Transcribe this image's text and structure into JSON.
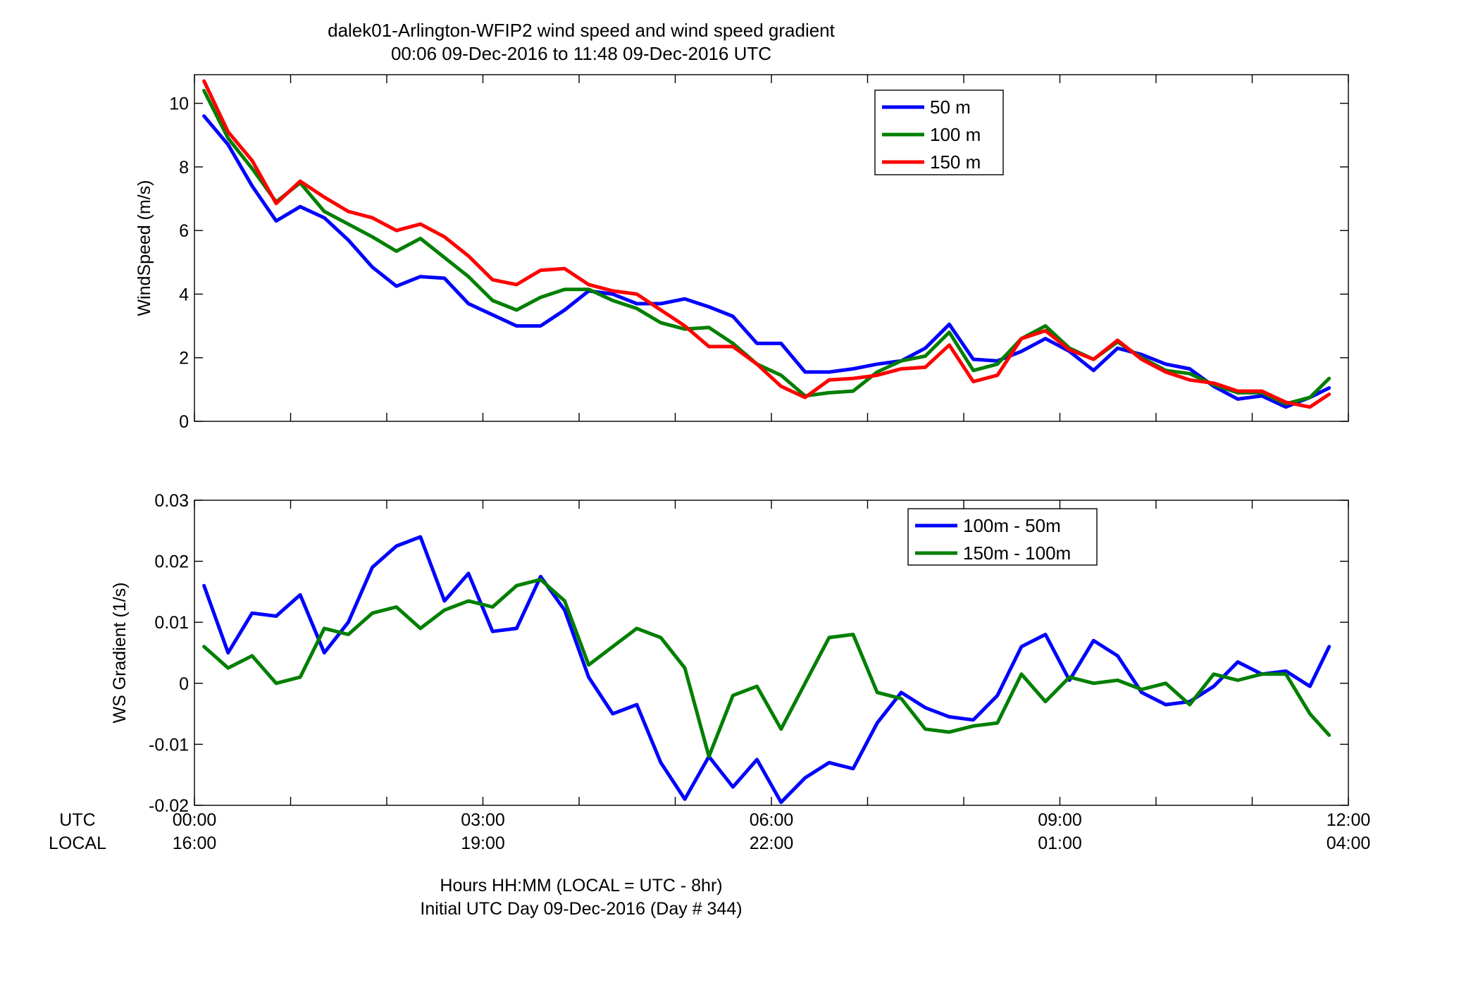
{
  "colors": {
    "blue": "#0000ff",
    "green": "#007f00",
    "red": "#ff0000"
  },
  "chart_data": [
    {
      "type": "line",
      "title": "dalek01-Arlington-WFIP2  wind speed and wind speed gradient",
      "subtitle": "00:06 09-Dec-2016 to 11:48 09-Dec-2016  UTC",
      "ylabel": "WindSpeed (m/s)",
      "xlim": [
        0,
        12
      ],
      "ylim": [
        0,
        10.9
      ],
      "yticks": [
        0,
        2,
        4,
        6,
        8,
        10
      ],
      "grid": false,
      "legend": "top-center",
      "x": [
        0.1,
        0.35,
        0.6,
        0.85,
        1.1,
        1.35,
        1.6,
        1.85,
        2.1,
        2.35,
        2.6,
        2.85,
        3.1,
        3.35,
        3.6,
        3.85,
        4.1,
        4.35,
        4.6,
        4.85,
        5.1,
        5.35,
        5.6,
        5.85,
        6.1,
        6.35,
        6.6,
        6.85,
        7.1,
        7.35,
        7.6,
        7.85,
        8.1,
        8.35,
        8.6,
        8.85,
        9.1,
        9.35,
        9.6,
        9.85,
        10.1,
        10.35,
        10.6,
        10.85,
        11.1,
        11.35,
        11.6,
        11.8
      ],
      "series": [
        {
          "name": "50 m",
          "color": "#0000ff",
          "values": [
            9.6,
            8.7,
            7.4,
            6.3,
            6.75,
            6.4,
            5.7,
            4.85,
            4.25,
            4.55,
            4.5,
            3.7,
            3.35,
            3.0,
            3.0,
            3.5,
            4.1,
            4.0,
            3.7,
            3.7,
            3.85,
            3.6,
            3.3,
            2.45,
            2.45,
            1.55,
            1.55,
            1.65,
            1.8,
            1.9,
            2.3,
            3.05,
            1.95,
            1.9,
            2.2,
            2.6,
            2.2,
            1.6,
            2.3,
            2.1,
            1.8,
            1.65,
            1.1,
            0.7,
            0.8,
            0.45,
            0.75,
            1.05
          ]
        },
        {
          "name": "100 m",
          "color": "#007f00",
          "values": [
            10.4,
            8.9,
            7.95,
            6.9,
            7.5,
            6.6,
            6.2,
            5.8,
            5.35,
            5.75,
            5.15,
            4.55,
            3.8,
            3.5,
            3.9,
            4.15,
            4.15,
            3.8,
            3.55,
            3.1,
            2.9,
            2.95,
            2.45,
            1.8,
            1.45,
            0.8,
            0.9,
            0.95,
            1.55,
            1.9,
            2.05,
            2.8,
            1.6,
            1.8,
            2.6,
            3.0,
            2.3,
            1.95,
            2.5,
            2.0,
            1.6,
            1.5,
            1.15,
            0.9,
            0.9,
            0.55,
            0.75,
            1.35
          ]
        },
        {
          "name": "150 m",
          "color": "#ff0000",
          "values": [
            10.7,
            9.1,
            8.2,
            6.85,
            7.55,
            7.05,
            6.6,
            6.4,
            6.0,
            6.2,
            5.8,
            5.2,
            4.45,
            4.3,
            4.75,
            4.8,
            4.3,
            4.1,
            4.0,
            3.5,
            3.0,
            2.35,
            2.35,
            1.8,
            1.1,
            0.75,
            1.3,
            1.35,
            1.45,
            1.65,
            1.7,
            2.4,
            1.25,
            1.45,
            2.6,
            2.85,
            2.25,
            1.95,
            2.55,
            1.95,
            1.55,
            1.3,
            1.2,
            0.95,
            0.95,
            0.6,
            0.45,
            0.85
          ]
        }
      ]
    },
    {
      "type": "line",
      "ylabel": "WS Gradient (1/s)",
      "xlabel": "Hours HH:MM  (LOCAL = UTC - 8hr)",
      "xlabel2": "Initial UTC Day 09-Dec-2016 (Day # 344)",
      "xlim": [
        0,
        12
      ],
      "ylim": [
        -0.02,
        0.03
      ],
      "yticks": [
        -0.02,
        -0.01,
        0,
        0.01,
        0.02,
        0.03
      ],
      "ytick_labels": [
        "-0.02",
        "-0.01",
        "0",
        "0.01",
        "0.02",
        "0.03"
      ],
      "xticks": [
        0,
        3,
        6,
        9,
        12
      ],
      "xtick_labels_utc": [
        "00:00",
        "03:00",
        "06:00",
        "09:00",
        "12:00"
      ],
      "xtick_labels_local": [
        "16:00",
        "19:00",
        "22:00",
        "01:00",
        "04:00"
      ],
      "row_label_utc": "UTC",
      "row_label_local": "LOCAL",
      "grid": false,
      "legend": "top-right",
      "x": [
        0.1,
        0.35,
        0.6,
        0.85,
        1.1,
        1.35,
        1.6,
        1.85,
        2.1,
        2.35,
        2.6,
        2.85,
        3.1,
        3.35,
        3.6,
        3.85,
        4.1,
        4.35,
        4.6,
        4.85,
        5.1,
        5.35,
        5.6,
        5.85,
        6.1,
        6.35,
        6.6,
        6.85,
        7.1,
        7.35,
        7.6,
        7.85,
        8.1,
        8.35,
        8.6,
        8.85,
        9.1,
        9.35,
        9.6,
        9.85,
        10.1,
        10.35,
        10.6,
        10.85,
        11.1,
        11.35,
        11.6,
        11.8
      ],
      "series": [
        {
          "name": "100m - 50m",
          "color": "#0000ff",
          "values": [
            0.016,
            0.005,
            0.0115,
            0.011,
            0.0145,
            0.005,
            0.01,
            0.019,
            0.0225,
            0.024,
            0.0135,
            0.018,
            0.0085,
            0.009,
            0.0175,
            0.012,
            0.001,
            -0.005,
            -0.0035,
            -0.013,
            -0.019,
            -0.012,
            -0.017,
            -0.0125,
            -0.0195,
            -0.0155,
            -0.013,
            -0.014,
            -0.0065,
            -0.0015,
            -0.004,
            -0.0055,
            -0.006,
            -0.002,
            0.006,
            0.008,
            0.0005,
            0.007,
            0.0045,
            -0.0015,
            -0.0035,
            -0.003,
            -0.0005,
            0.0035,
            0.0015,
            0.002,
            -0.0005,
            0.006
          ]
        },
        {
          "name": "150m - 100m",
          "color": "#007f00",
          "values": [
            0.006,
            0.0025,
            0.0045,
            0.0,
            0.001,
            0.009,
            0.008,
            0.0115,
            0.0125,
            0.009,
            0.012,
            0.0135,
            0.0125,
            0.016,
            0.017,
            0.0135,
            0.003,
            0.006,
            0.009,
            0.0075,
            0.0025,
            -0.012,
            -0.002,
            -0.0005,
            -0.0075,
            0.0,
            0.0075,
            0.008,
            -0.0015,
            -0.0025,
            -0.0075,
            -0.008,
            -0.007,
            -0.0065,
            0.0015,
            -0.003,
            0.001,
            0.0,
            0.0005,
            -0.001,
            0.0,
            -0.0035,
            0.0015,
            0.0005,
            0.0015,
            0.0015,
            -0.005,
            -0.0085
          ]
        }
      ]
    }
  ]
}
